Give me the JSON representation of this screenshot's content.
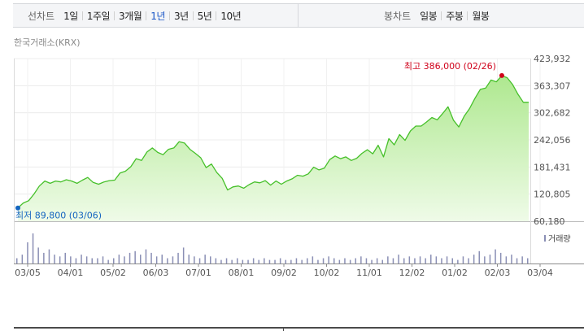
{
  "period_tabs": {
    "label": "선차트",
    "items": [
      "1일",
      "1주일",
      "3개월",
      "1년",
      "3년",
      "5년",
      "10년"
    ],
    "active": "1년"
  },
  "candle_tabs": {
    "label": "봉차트",
    "items": [
      "일봉",
      "주봉",
      "월봉"
    ]
  },
  "exchange": "한국거래소(KRX)",
  "colors": {
    "line": "#46c02a",
    "fill_top": "#aee88f",
    "fill_bottom": "#effbe8",
    "high": "#d0021b",
    "low": "#1565c0",
    "volume": "#8a8fb5",
    "active_tab": "#1a56c6"
  },
  "chart_data": {
    "type": "area",
    "y_ticks": [
      "423,932",
      "363,307",
      "302,682",
      "242,056",
      "181,431",
      "120,805",
      "60,180"
    ],
    "ylim": [
      60180,
      423932
    ],
    "x_ticks": [
      "03/05",
      "04/01",
      "05/02",
      "06/03",
      "07/01",
      "08/01",
      "09/02",
      "10/02",
      "11/01",
      "12/02",
      "01/02",
      "02/03",
      "03/04"
    ],
    "high_label": "최고 386,000 (02/26)",
    "low_label": "최저 89,800 (03/06)",
    "volume_legend": "거래량",
    "price": [
      89800,
      101000,
      106000,
      121000,
      139000,
      150000,
      145000,
      150000,
      148000,
      153000,
      150000,
      145000,
      152000,
      158000,
      147000,
      143000,
      148000,
      151000,
      152000,
      168000,
      172000,
      182000,
      200000,
      196000,
      215000,
      224000,
      214000,
      209000,
      221000,
      224000,
      238000,
      235000,
      221000,
      212000,
      202000,
      180000,
      188000,
      169000,
      156000,
      130000,
      137000,
      139000,
      134000,
      142000,
      148000,
      146000,
      151000,
      141000,
      150000,
      143000,
      150000,
      155000,
      163000,
      161000,
      166000,
      181000,
      175000,
      179000,
      198000,
      206000,
      200000,
      204000,
      196000,
      201000,
      212000,
      220000,
      211000,
      230000,
      204000,
      245000,
      231000,
      254000,
      241000,
      262000,
      273000,
      273000,
      282000,
      292000,
      287000,
      301000,
      316000,
      286000,
      271000,
      295000,
      312000,
      335000,
      355000,
      358000,
      376000,
      372000,
      386000,
      381000,
      366000,
      344000,
      326000,
      326000
    ],
    "volume": [
      3,
      5,
      12,
      17,
      9,
      6,
      8,
      5,
      4,
      6,
      4,
      3,
      5,
      4,
      3,
      3,
      4,
      2,
      3,
      5,
      4,
      6,
      7,
      5,
      8,
      6,
      4,
      5,
      3,
      4,
      6,
      9,
      5,
      4,
      3,
      5,
      4,
      3,
      2,
      3,
      2,
      3,
      2,
      2,
      3,
      2,
      3,
      2,
      2,
      3,
      2,
      2,
      3,
      2,
      3,
      4,
      2,
      3,
      4,
      3,
      2,
      3,
      2,
      3,
      4,
      3,
      2,
      3,
      2,
      4,
      3,
      5,
      3,
      4,
      3,
      4,
      3,
      5,
      4,
      3,
      4,
      3,
      2,
      4,
      3,
      5,
      7,
      4,
      5,
      8,
      6,
      4,
      5,
      3,
      4,
      3
    ]
  }
}
